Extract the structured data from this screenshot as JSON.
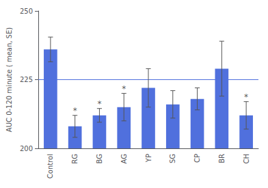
{
  "chart_data": {
    "type": "bar",
    "categories": [
      "Control",
      "RG",
      "BG",
      "AG",
      "YP",
      "SG",
      "CP",
      "BR",
      "CH"
    ],
    "values": [
      236,
      208,
      212,
      215,
      222,
      216,
      218,
      229,
      212
    ],
    "errors": [
      4.5,
      4,
      2.5,
      5,
      7,
      5,
      4,
      10,
      5
    ],
    "reference_line": 225,
    "annotations": [
      {
        "text": "*",
        "category": "RG"
      },
      {
        "text": "*",
        "category": "BG"
      },
      {
        "text": "*",
        "category": "AG"
      },
      {
        "text": "*",
        "category": "CH"
      }
    ],
    "ylabel": "AUC 0-120 minute ( mean, SE)",
    "ylim": [
      200,
      250
    ],
    "yticks": [
      200,
      225,
      250
    ],
    "grid": false
  }
}
